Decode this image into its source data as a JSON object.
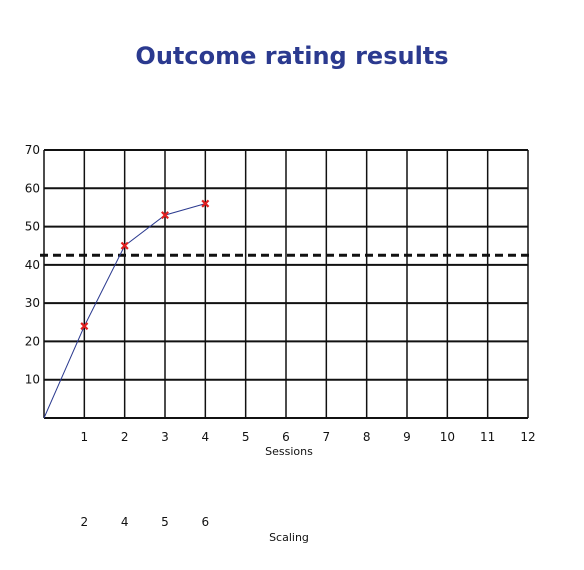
{
  "chart_data": {
    "type": "line",
    "title": "Outcome rating results",
    "xlabel": "Sessions",
    "ylabel": "",
    "xlim": [
      0,
      12
    ],
    "ylim": [
      0,
      70
    ],
    "x_ticks": [
      "1",
      "2",
      "3",
      "4",
      "5",
      "6",
      "7",
      "8",
      "9",
      "10",
      "11",
      "12"
    ],
    "y_ticks": [
      "10",
      "20",
      "30",
      "40",
      "50",
      "60",
      "70"
    ],
    "grid": true,
    "series": [
      {
        "x": [
          0,
          1,
          2,
          3,
          4
        ],
        "y": [
          0,
          24,
          45,
          53,
          56
        ],
        "markers": [
          false,
          true,
          true,
          true,
          true
        ],
        "color": "#2b3a8f",
        "marker_color": "#e02020"
      }
    ],
    "reference_line": {
      "y": 42.5,
      "style": "dashed",
      "color": "#111111"
    },
    "secondary_axis": {
      "label": "Scaling",
      "ticks": [
        {
          "x": 1,
          "label": "2"
        },
        {
          "x": 2,
          "label": "4"
        },
        {
          "x": 3,
          "label": "5"
        },
        {
          "x": 4,
          "label": "6"
        }
      ]
    }
  }
}
